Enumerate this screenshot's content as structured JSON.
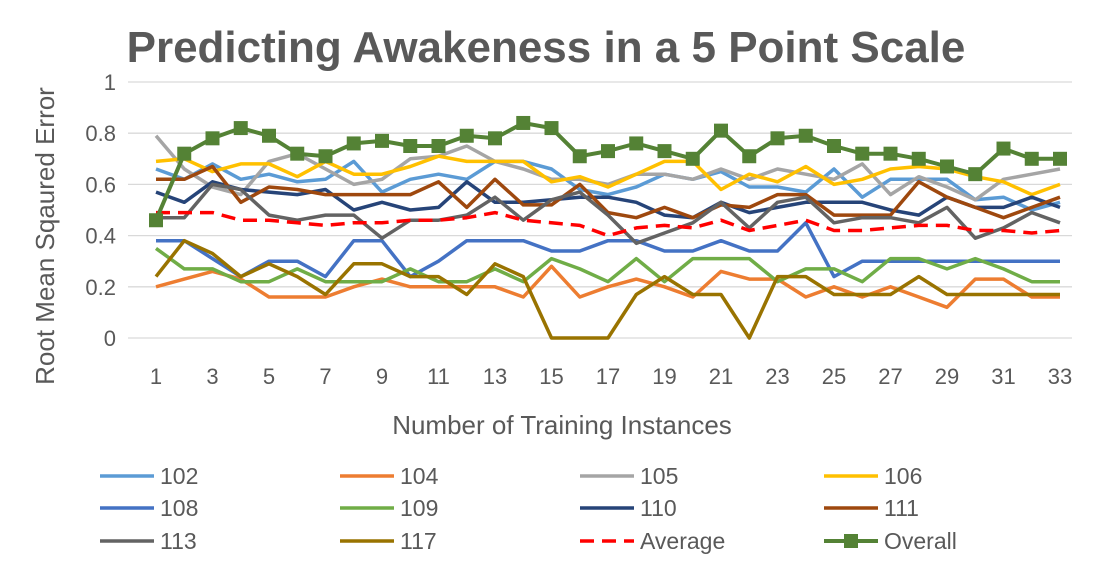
{
  "chart_data": {
    "type": "line",
    "title": "Predicting Awakeness in a 5 Point Scale",
    "xlabel": "Number of Training Instances",
    "ylabel": "Root Mean Sqaured Error",
    "ylim": [
      0,
      1
    ],
    "yticks": [
      "0",
      "0.2",
      "0.4",
      "0.6",
      "0.8",
      "1"
    ],
    "xticks": [
      "1",
      "3",
      "5",
      "7",
      "9",
      "11",
      "13",
      "15",
      "17",
      "19",
      "21",
      "23",
      "25",
      "27",
      "29",
      "31",
      "33"
    ],
    "x": [
      1,
      2,
      3,
      4,
      5,
      6,
      7,
      8,
      9,
      10,
      11,
      12,
      13,
      14,
      15,
      16,
      17,
      18,
      19,
      20,
      21,
      22,
      23,
      24,
      25,
      26,
      27,
      28,
      29,
      30,
      31,
      32,
      33
    ],
    "grid": "horizontal",
    "legend_position": "bottom",
    "series": [
      {
        "name": "102",
        "color": "#5B9BD5",
        "style": "solid",
        "values": [
          0.66,
          0.62,
          0.68,
          0.62,
          0.64,
          0.61,
          0.62,
          0.69,
          0.57,
          0.62,
          0.64,
          0.62,
          0.69,
          0.69,
          0.66,
          0.58,
          0.56,
          0.59,
          0.64,
          0.62,
          0.65,
          0.59,
          0.59,
          0.57,
          0.66,
          0.55,
          0.62,
          0.62,
          0.62,
          0.54,
          0.55,
          0.5,
          0.53
        ]
      },
      {
        "name": "104",
        "color": "#ED7D31",
        "style": "solid",
        "values": [
          0.2,
          0.23,
          0.26,
          0.23,
          0.16,
          0.16,
          0.16,
          0.2,
          0.23,
          0.2,
          0.2,
          0.2,
          0.2,
          0.16,
          0.28,
          0.16,
          0.2,
          0.23,
          0.2,
          0.16,
          0.26,
          0.23,
          0.23,
          0.16,
          0.2,
          0.16,
          0.2,
          0.16,
          0.12,
          0.23,
          0.23,
          0.16,
          0.16
        ]
      },
      {
        "name": "105",
        "color": "#A5A5A5",
        "style": "solid",
        "values": [
          0.79,
          0.66,
          0.59,
          0.56,
          0.69,
          0.72,
          0.66,
          0.6,
          0.62,
          0.7,
          0.71,
          0.75,
          0.69,
          0.66,
          0.62,
          0.62,
          0.6,
          0.64,
          0.64,
          0.62,
          0.66,
          0.62,
          0.66,
          0.64,
          0.62,
          0.68,
          0.56,
          0.63,
          0.59,
          0.54,
          0.62,
          0.64,
          0.66
        ]
      },
      {
        "name": "106",
        "color": "#FFC000",
        "style": "solid",
        "values": [
          0.69,
          0.7,
          0.65,
          0.68,
          0.68,
          0.63,
          0.69,
          0.64,
          0.64,
          0.67,
          0.71,
          0.69,
          0.69,
          0.69,
          0.61,
          0.63,
          0.59,
          0.64,
          0.69,
          0.69,
          0.58,
          0.64,
          0.61,
          0.67,
          0.6,
          0.62,
          0.66,
          0.67,
          0.66,
          0.63,
          0.61,
          0.56,
          0.6
        ]
      },
      {
        "name": "108",
        "color": "#4472C4",
        "style": "solid",
        "values": [
          0.38,
          0.38,
          0.31,
          0.24,
          0.3,
          0.3,
          0.24,
          0.38,
          0.38,
          0.24,
          0.3,
          0.38,
          0.38,
          0.38,
          0.34,
          0.34,
          0.38,
          0.38,
          0.34,
          0.34,
          0.38,
          0.34,
          0.34,
          0.45,
          0.24,
          0.3,
          0.3,
          0.3,
          0.3,
          0.3,
          0.3,
          0.3,
          0.3
        ]
      },
      {
        "name": "109",
        "color": "#70AD47",
        "style": "solid",
        "values": [
          0.35,
          0.27,
          0.27,
          0.22,
          0.22,
          0.27,
          0.22,
          0.22,
          0.22,
          0.27,
          0.22,
          0.22,
          0.27,
          0.22,
          0.31,
          0.27,
          0.22,
          0.31,
          0.22,
          0.31,
          0.31,
          0.31,
          0.22,
          0.27,
          0.27,
          0.22,
          0.31,
          0.31,
          0.27,
          0.31,
          0.27,
          0.22,
          0.22
        ]
      },
      {
        "name": "110",
        "color": "#264478",
        "style": "solid",
        "values": [
          0.57,
          0.53,
          0.61,
          0.58,
          0.57,
          0.56,
          0.58,
          0.5,
          0.53,
          0.5,
          0.51,
          0.61,
          0.53,
          0.53,
          0.54,
          0.55,
          0.55,
          0.53,
          0.48,
          0.47,
          0.53,
          0.49,
          0.51,
          0.53,
          0.53,
          0.53,
          0.5,
          0.48,
          0.55,
          0.51,
          0.51,
          0.55,
          0.51
        ]
      },
      {
        "name": "111",
        "color": "#9E480E",
        "style": "solid",
        "values": [
          0.62,
          0.62,
          0.67,
          0.53,
          0.59,
          0.58,
          0.56,
          0.56,
          0.56,
          0.56,
          0.61,
          0.51,
          0.62,
          0.52,
          0.52,
          0.6,
          0.49,
          0.47,
          0.51,
          0.47,
          0.52,
          0.51,
          0.56,
          0.56,
          0.48,
          0.48,
          0.48,
          0.61,
          0.55,
          0.51,
          0.47,
          0.51,
          0.55
        ]
      },
      {
        "name": "113",
        "color": "#636363",
        "style": "solid",
        "values": [
          0.47,
          0.47,
          0.6,
          0.58,
          0.48,
          0.46,
          0.48,
          0.48,
          0.39,
          0.46,
          0.46,
          0.48,
          0.55,
          0.46,
          0.54,
          0.57,
          0.48,
          0.37,
          0.41,
          0.45,
          0.53,
          0.43,
          0.53,
          0.55,
          0.45,
          0.47,
          0.47,
          0.45,
          0.51,
          0.39,
          0.43,
          0.49,
          0.45
        ]
      },
      {
        "name": "117",
        "color": "#997300",
        "style": "solid",
        "values": [
          0.24,
          0.38,
          0.33,
          0.24,
          0.29,
          0.24,
          0.17,
          0.29,
          0.29,
          0.24,
          0.24,
          0.17,
          0.29,
          0.24,
          0.0,
          0.0,
          0.0,
          0.17,
          0.24,
          0.17,
          0.17,
          0.0,
          0.24,
          0.24,
          0.17,
          0.17,
          0.17,
          0.24,
          0.17,
          0.17,
          0.17,
          0.17,
          0.17
        ]
      },
      {
        "name": "Average",
        "color": "#FF0000",
        "style": "dashed",
        "values": [
          0.49,
          0.49,
          0.49,
          0.46,
          0.46,
          0.45,
          0.44,
          0.45,
          0.45,
          0.46,
          0.46,
          0.47,
          0.49,
          0.46,
          0.45,
          0.44,
          0.4,
          0.43,
          0.44,
          0.43,
          0.46,
          0.42,
          0.44,
          0.46,
          0.42,
          0.42,
          0.43,
          0.44,
          0.44,
          0.42,
          0.42,
          0.41,
          0.42
        ]
      },
      {
        "name": "Overall",
        "color": "#548235",
        "style": "marker",
        "values": [
          0.46,
          0.72,
          0.78,
          0.82,
          0.79,
          0.72,
          0.71,
          0.76,
          0.77,
          0.75,
          0.75,
          0.79,
          0.78,
          0.84,
          0.82,
          0.71,
          0.73,
          0.76,
          0.73,
          0.7,
          0.81,
          0.71,
          0.78,
          0.79,
          0.75,
          0.72,
          0.72,
          0.7,
          0.67,
          0.64,
          0.74,
          0.7,
          0.7
        ]
      }
    ]
  }
}
